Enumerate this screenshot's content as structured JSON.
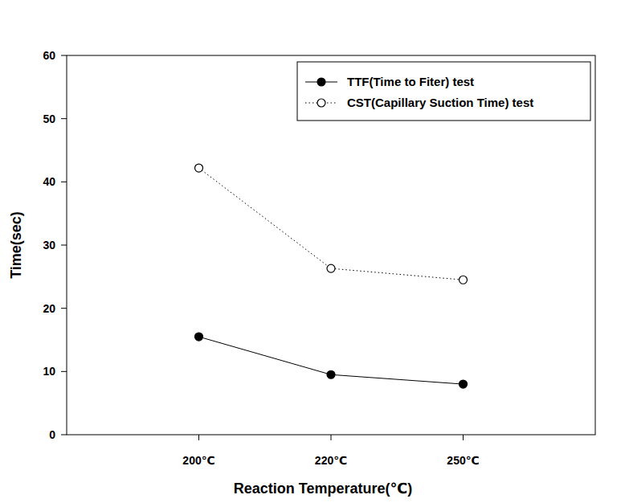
{
  "chart_data": {
    "type": "line",
    "x_label": "Reaction Temperature(℃)",
    "y_label": "Time(sec)",
    "categories": [
      "200℃",
      "220℃",
      "250℃"
    ],
    "series": [
      {
        "name": "TTF(Time to Fiter) test",
        "color": "#000000",
        "values": [
          15.5,
          9.5,
          8
        ],
        "marker": "circle",
        "line_style": "solid"
      },
      {
        "name": "CST(Capillary Suction Time) test",
        "color": "#000000",
        "values": [
          42.2,
          26.3,
          24.5
        ],
        "marker": "open-circle",
        "line_style": "dotted"
      }
    ],
    "ylim": [
      0,
      60
    ],
    "yticks": [
      0,
      10,
      20,
      30,
      40,
      50,
      60
    ],
    "grid": false,
    "legend": "top-right"
  }
}
